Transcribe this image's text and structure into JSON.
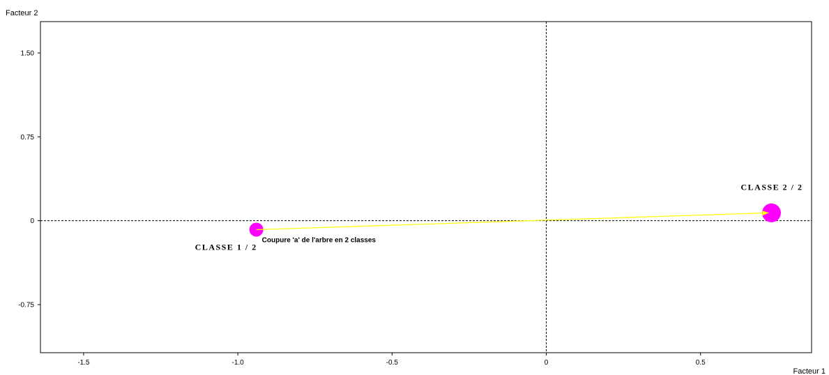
{
  "chart_data": {
    "type": "scatter",
    "title": "",
    "xlabel": "Facteur 1",
    "ylabel": "Facteur 2",
    "xlim": [
      -1.64,
      0.86
    ],
    "ylim": [
      -1.18,
      1.78
    ],
    "x_ticks": [
      {
        "value": -1.5,
        "label": "-1.5"
      },
      {
        "value": -1.0,
        "label": "-1.0"
      },
      {
        "value": -0.5,
        "label": "-0.5"
      },
      {
        "value": 0,
        "label": "0"
      },
      {
        "value": 0.5,
        "label": "0.5"
      }
    ],
    "y_ticks": [
      {
        "value": 1.5,
        "label": "1.50"
      },
      {
        "value": 0.75,
        "label": "0.75"
      },
      {
        "value": 0,
        "label": "0"
      },
      {
        "value": -0.75,
        "label": "-0.75"
      }
    ],
    "grid": false,
    "zero_lines": true,
    "points": [
      {
        "label": "CLASSE  1 / 2",
        "x": -0.94,
        "y": -0.08,
        "size": 1.0
      },
      {
        "label": "CLASSE  2 / 2",
        "x": 0.73,
        "y": 0.07,
        "size": 1.35
      }
    ],
    "arrow": {
      "from": [
        -0.94,
        -0.08
      ],
      "to": [
        0.73,
        0.07
      ],
      "label": "Coupure 'a' de l'arbre en  2 classes"
    },
    "colors": {
      "point": "#ff00ff",
      "arrow": "#ffff00",
      "axis": "#000000"
    }
  }
}
